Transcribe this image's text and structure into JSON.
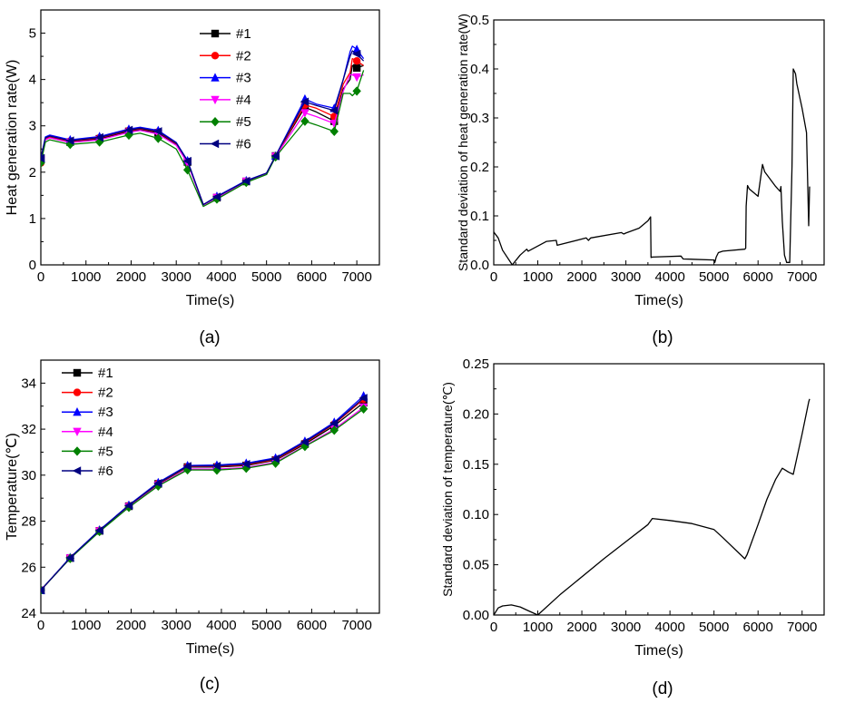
{
  "chart_data": [
    {
      "panel_label": "(a)",
      "type": "line",
      "xlabel": "Time(s)",
      "ylabel": "Heat generation rate(W)",
      "xlim": [
        0,
        7500
      ],
      "ylim": [
        0,
        5.5
      ],
      "xticks": [
        0,
        1000,
        2000,
        3000,
        4000,
        5000,
        6000,
        7000
      ],
      "xtick_labels": [
        "0",
        "1000",
        "2000",
        "3000",
        "4000",
        "5000",
        "6000",
        "7000"
      ],
      "yticks": [
        0,
        1,
        2,
        3,
        4,
        5
      ],
      "ytick_labels": [
        "0",
        "1",
        "2",
        "3",
        "4",
        "5"
      ],
      "legend_position": "top-center",
      "series": [
        {
          "name": "#1",
          "color": "#000000",
          "marker": "square",
          "x": [
            0,
            100,
            200,
            650,
            1300,
            1950,
            2200,
            2600,
            3000,
            3250,
            3600,
            3900,
            4550,
            5000,
            5200,
            5850,
            6100,
            6500,
            6700,
            6850,
            6900,
            7000,
            7150
          ],
          "y": [
            2.3,
            2.7,
            2.75,
            2.65,
            2.72,
            2.88,
            2.92,
            2.85,
            2.6,
            2.22,
            1.3,
            1.45,
            1.8,
            1.97,
            2.35,
            3.4,
            3.3,
            3.1,
            3.8,
            4.0,
            4.3,
            4.25,
            4.3
          ]
        },
        {
          "name": "#2",
          "color": "#ff0000",
          "marker": "circle",
          "x": [
            0,
            100,
            200,
            650,
            1300,
            1950,
            2200,
            2600,
            3000,
            3250,
            3600,
            3900,
            4550,
            5000,
            5200,
            5850,
            6100,
            6500,
            6700,
            6850,
            6900,
            7000,
            7150
          ],
          "y": [
            2.2,
            2.72,
            2.77,
            2.67,
            2.74,
            2.9,
            2.94,
            2.87,
            2.62,
            2.23,
            1.3,
            1.46,
            1.8,
            1.97,
            2.35,
            3.45,
            3.38,
            3.2,
            3.9,
            4.15,
            4.45,
            4.4,
            4.3
          ]
        },
        {
          "name": "#3",
          "color": "#0000ff",
          "marker": "triangle-up",
          "x": [
            0,
            100,
            200,
            650,
            1300,
            1950,
            2200,
            2600,
            3000,
            3250,
            3600,
            3900,
            4550,
            5000,
            5200,
            5850,
            6100,
            6500,
            6700,
            6850,
            6900,
            7000,
            7150
          ],
          "y": [
            2.3,
            2.76,
            2.8,
            2.7,
            2.77,
            2.93,
            2.97,
            2.9,
            2.64,
            2.25,
            1.3,
            1.48,
            1.82,
            1.98,
            2.35,
            3.58,
            3.47,
            3.38,
            4.0,
            4.6,
            4.72,
            4.65,
            4.45
          ]
        },
        {
          "name": "#4",
          "color": "#ff00ff",
          "marker": "triangle-down",
          "x": [
            0,
            100,
            200,
            650,
            1300,
            1950,
            2200,
            2600,
            3000,
            3250,
            3600,
            3900,
            4550,
            5000,
            5200,
            5850,
            6100,
            6500,
            6700,
            6850,
            6900,
            7000,
            7150
          ],
          "y": [
            2.25,
            2.7,
            2.74,
            2.64,
            2.7,
            2.86,
            2.9,
            2.82,
            2.58,
            2.2,
            1.29,
            1.45,
            1.8,
            1.97,
            2.34,
            3.28,
            3.2,
            3.05,
            3.75,
            4.1,
            4.1,
            4.05,
            4.1
          ]
        },
        {
          "name": "#5",
          "color": "#008000",
          "marker": "diamond",
          "x": [
            0,
            100,
            200,
            650,
            1300,
            1950,
            2200,
            2600,
            3000,
            3250,
            3600,
            3900,
            4550,
            5000,
            5200,
            5850,
            6100,
            6500,
            6700,
            6850,
            6900,
            7000,
            7150
          ],
          "y": [
            2.2,
            2.65,
            2.7,
            2.6,
            2.65,
            2.8,
            2.84,
            2.73,
            2.5,
            2.05,
            1.26,
            1.42,
            1.78,
            1.95,
            2.33,
            3.1,
            3.02,
            2.88,
            3.7,
            3.7,
            3.65,
            3.75,
            4.2
          ]
        },
        {
          "name": "#6",
          "color": "#000080",
          "marker": "triangle-left",
          "x": [
            0,
            100,
            200,
            650,
            1300,
            1950,
            2200,
            2600,
            3000,
            3250,
            3600,
            3900,
            4550,
            5000,
            5200,
            5850,
            6100,
            6500,
            6700,
            6850,
            6900,
            7000,
            7150
          ],
          "y": [
            2.3,
            2.74,
            2.78,
            2.68,
            2.75,
            2.91,
            2.95,
            2.88,
            2.63,
            2.24,
            1.3,
            1.47,
            1.81,
            1.98,
            2.35,
            3.52,
            3.44,
            3.33,
            4.0,
            4.5,
            4.62,
            4.55,
            4.4
          ]
        }
      ]
    },
    {
      "panel_label": "(b)",
      "type": "line",
      "xlabel": "Time(s)",
      "ylabel": "Standard deviation of heat generation rate(W)",
      "xlim": [
        0,
        7500
      ],
      "ylim": [
        0,
        0.5
      ],
      "xticks": [
        0,
        1000,
        2000,
        3000,
        4000,
        5000,
        6000,
        7000
      ],
      "xtick_labels": [
        "0",
        "1000",
        "2000",
        "3000",
        "4000",
        "5000",
        "6000",
        "7000"
      ],
      "yticks": [
        0,
        0.1,
        0.2,
        0.3,
        0.4,
        0.5
      ],
      "ytick_labels": [
        "0.0",
        "0.1",
        "0.2",
        "0.3",
        "0.4",
        "0.5"
      ],
      "series": [
        {
          "color": "#000000",
          "x": [
            0,
            100,
            200,
            420,
            600,
            750,
            780,
            1200,
            1420,
            1440,
            2100,
            2150,
            2200,
            2900,
            2950,
            3000,
            3300,
            3500,
            3560,
            3570,
            3600,
            4250,
            4300,
            5000,
            5020,
            5050,
            5100,
            5200,
            5700,
            5720,
            5730,
            5760,
            5800,
            6000,
            6100,
            6150,
            6400,
            6500,
            6520,
            6550,
            6600,
            6650,
            6720,
            6770,
            6800,
            6850,
            6880,
            7000,
            7100,
            7150,
            7170
          ],
          "y": [
            0.067,
            0.055,
            0.03,
            0.0,
            0.02,
            0.032,
            0.028,
            0.048,
            0.05,
            0.04,
            0.055,
            0.05,
            0.055,
            0.066,
            0.063,
            0.065,
            0.075,
            0.09,
            0.098,
            0.015,
            0.016,
            0.018,
            0.012,
            0.01,
            0.005,
            0.016,
            0.025,
            0.028,
            0.032,
            0.034,
            0.12,
            0.162,
            0.155,
            0.14,
            0.205,
            0.19,
            0.16,
            0.15,
            0.16,
            0.09,
            0.02,
            0.005,
            0.005,
            0.2,
            0.4,
            0.39,
            0.37,
            0.32,
            0.27,
            0.08,
            0.16
          ]
        }
      ]
    },
    {
      "panel_label": "(c)",
      "type": "line",
      "xlabel": "Time(s)",
      "ylabel": "Temperature(℃)",
      "xlim": [
        0,
        7500
      ],
      "ylim": [
        24,
        35
      ],
      "xticks": [
        0,
        1000,
        2000,
        3000,
        4000,
        5000,
        6000,
        7000
      ],
      "xtick_labels": [
        "0",
        "1000",
        "2000",
        "3000",
        "4000",
        "5000",
        "6000",
        "7000"
      ],
      "yticks": [
        24,
        26,
        28,
        30,
        32,
        34
      ],
      "ytick_labels": [
        "24",
        "26",
        "28",
        "30",
        "32",
        "34"
      ],
      "legend_position": "top-left",
      "series": [
        {
          "name": "#1",
          "color": "#000000",
          "marker": "square",
          "x": [
            0,
            650,
            1300,
            1950,
            2600,
            3250,
            3900,
            4550,
            5200,
            5850,
            6500,
            7150
          ],
          "y": [
            25.0,
            26.4,
            27.58,
            28.65,
            29.62,
            30.35,
            30.35,
            30.42,
            30.65,
            31.35,
            32.15,
            33.15
          ]
        },
        {
          "name": "#2",
          "color": "#ff0000",
          "marker": "circle",
          "x": [
            0,
            650,
            1300,
            1950,
            2600,
            3250,
            3900,
            4550,
            5200,
            5850,
            6500,
            7150
          ],
          "y": [
            25.0,
            26.4,
            27.6,
            28.67,
            29.64,
            30.37,
            30.38,
            30.45,
            30.68,
            31.4,
            32.22,
            33.3
          ]
        },
        {
          "name": "#3",
          "color": "#0000ff",
          "marker": "triangle-up",
          "x": [
            0,
            650,
            1300,
            1950,
            2600,
            3250,
            3900,
            4550,
            5200,
            5850,
            6500,
            7150
          ],
          "y": [
            25.0,
            26.42,
            27.62,
            28.7,
            29.68,
            30.42,
            30.44,
            30.52,
            30.75,
            31.48,
            32.3,
            33.45
          ]
        },
        {
          "name": "#4",
          "color": "#ff00ff",
          "marker": "triangle-down",
          "x": [
            0,
            650,
            1300,
            1950,
            2600,
            3250,
            3900,
            4550,
            5200,
            5850,
            6500,
            7150
          ],
          "y": [
            25.0,
            26.39,
            27.57,
            28.62,
            29.56,
            30.27,
            30.26,
            30.33,
            30.56,
            31.28,
            32.0,
            32.95
          ]
        },
        {
          "name": "#5",
          "color": "#008000",
          "marker": "diamond",
          "x": [
            0,
            650,
            1300,
            1950,
            2600,
            3250,
            3900,
            4550,
            5200,
            5850,
            6500,
            7150
          ],
          "y": [
            25.0,
            26.38,
            27.55,
            28.6,
            29.53,
            30.23,
            30.22,
            30.3,
            30.52,
            31.25,
            31.95,
            32.88
          ]
        },
        {
          "name": "#6",
          "color": "#000080",
          "marker": "triangle-left",
          "x": [
            0,
            650,
            1300,
            1950,
            2600,
            3250,
            3900,
            4550,
            5200,
            5850,
            6500,
            7150
          ],
          "y": [
            25.0,
            26.41,
            27.6,
            28.68,
            29.65,
            30.39,
            30.4,
            30.48,
            30.71,
            31.44,
            32.25,
            33.35
          ]
        }
      ]
    },
    {
      "panel_label": "(d)",
      "type": "line",
      "xlabel": "Time(s)",
      "ylabel": "Standard deviation of temperature(℃)",
      "xlim": [
        0,
        7500
      ],
      "ylim": [
        0,
        0.25
      ],
      "xticks": [
        0,
        1000,
        2000,
        3000,
        4000,
        5000,
        6000,
        7000
      ],
      "xtick_labels": [
        "0",
        "1000",
        "2000",
        "3000",
        "4000",
        "5000",
        "6000",
        "7000"
      ],
      "yticks": [
        0,
        0.05,
        0.1,
        0.15,
        0.2,
        0.25
      ],
      "ytick_labels": [
        "0.00",
        "0.05",
        "0.10",
        "0.15",
        "0.20",
        "0.25"
      ],
      "series": [
        {
          "color": "#000000",
          "x": [
            0,
            100,
            200,
            400,
            600,
            800,
            1000,
            1500,
            2000,
            2500,
            3000,
            3500,
            3600,
            4000,
            4500,
            5000,
            5200,
            5700,
            5750,
            6000,
            6200,
            6400,
            6550,
            6700,
            6800,
            7000,
            7150,
            7170
          ],
          "y": [
            0.0,
            0.007,
            0.009,
            0.01,
            0.008,
            0.004,
            0.0,
            0.02,
            0.038,
            0.056,
            0.073,
            0.09,
            0.096,
            0.094,
            0.091,
            0.085,
            0.077,
            0.056,
            0.06,
            0.09,
            0.115,
            0.135,
            0.146,
            0.142,
            0.14,
            0.18,
            0.212,
            0.215
          ]
        }
      ]
    }
  ]
}
